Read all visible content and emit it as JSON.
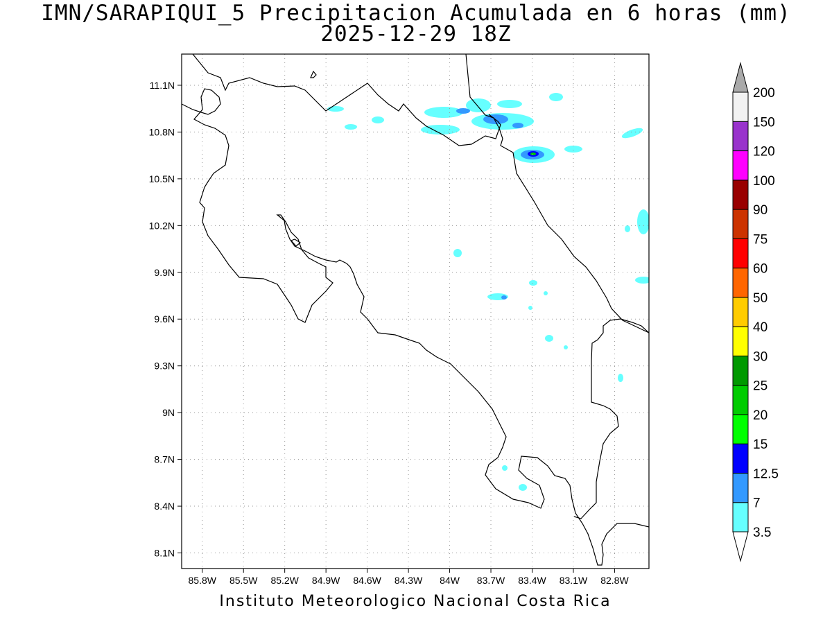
{
  "title": {
    "line1": "IMN/SARAPIQUI_5 Precipitacion Acumulada en 6 horas (mm)",
    "line2": "2025-12-29 18Z"
  },
  "footer": "Instituto Meteorologico Nacional Costa Rica",
  "map": {
    "lon_ticks": [
      "85.8W",
      "85.5W",
      "85.2W",
      "84.9W",
      "84.6W",
      "84.3W",
      "84W",
      "83.7W",
      "83.4W",
      "83.1W",
      "82.8W"
    ],
    "lat_ticks": [
      "11.1N",
      "10.8N",
      "10.5N",
      "10.2N",
      "9.9N",
      "9.6N",
      "9.3N",
      "9N",
      "8.7N",
      "8.4N",
      "8.1N"
    ],
    "lon_range": [
      -85.95,
      -82.55
    ],
    "lat_range": [
      8.0,
      11.3
    ],
    "grid": "dotted"
  },
  "colorbar": {
    "levels": [
      "3.5",
      "7",
      "12.5",
      "15",
      "20",
      "25",
      "30",
      "40",
      "50",
      "60",
      "75",
      "90",
      "100",
      "120",
      "150",
      "200"
    ],
    "colors": [
      "#66ffff",
      "#3399ff",
      "#0000ff",
      "#00ff00",
      "#00cc00",
      "#009900",
      "#ffff00",
      "#ffcc00",
      "#ff6600",
      "#ff0000",
      "#cc3300",
      "#990000",
      "#ff00ff",
      "#9933cc",
      "#f2f2f2",
      "#aaaaaa"
    ]
  }
}
